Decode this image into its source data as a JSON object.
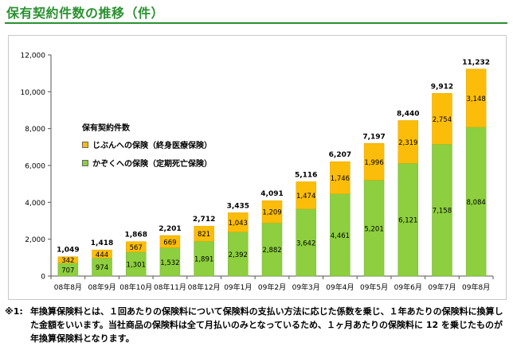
{
  "page": {
    "title": "保有契約件数の推移（件）"
  },
  "footnote": {
    "mark": "※1:",
    "text": "年換算保険料とは、１回あたりの保険料について保険料の支払い方法に応じた係数を乗じ、１年あたりの保険料に換算した金額をいいます。当社商品の保険料は全て月払いのみとなっているため、１ヶ月あたりの保険料に 12 を乗じたものが年換算保険料となります。"
  },
  "chart_data": {
    "type": "bar",
    "stacked": true,
    "title": "保有契約件数の推移（件）",
    "legend_title": "保有契約件数",
    "categories": [
      "08年8月",
      "08年9月",
      "08年10月",
      "08年11月",
      "08年12月",
      "09年1月",
      "09年2月",
      "09年3月",
      "09年4月",
      "09年5月",
      "09年6月",
      "09年7月",
      "09年8月"
    ],
    "series": [
      {
        "name": "かぞくへの保険（定期死亡保険）",
        "color": "#8dcf3f",
        "values": [
          707,
          974,
          1301,
          1532,
          1891,
          2392,
          2882,
          3642,
          4461,
          5201,
          6121,
          7158,
          8084
        ]
      },
      {
        "name": "じぶんへの保険（終身医療保険）",
        "color": "#fbbd0a",
        "values": [
          342,
          444,
          567,
          669,
          821,
          1043,
          1209,
          1474,
          1746,
          1996,
          2319,
          2754,
          3148
        ]
      }
    ],
    "totals": [
      1049,
      1418,
      1868,
      2201,
      2712,
      3435,
      4091,
      5116,
      6207,
      7197,
      8440,
      9912,
      11232
    ],
    "yticks": [
      0,
      2000,
      4000,
      6000,
      8000,
      10000,
      12000
    ],
    "ylim": [
      0,
      12000
    ],
    "xlabel": "",
    "ylabel": "",
    "grid": false,
    "legend_position": "top-left"
  }
}
